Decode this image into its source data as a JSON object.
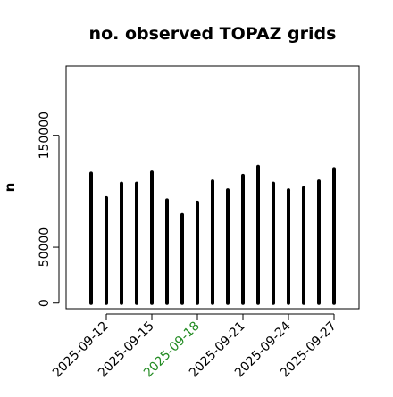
{
  "chart_data": {
    "type": "bar",
    "title": "no. observed TOPAZ grids",
    "xlabel": "",
    "ylabel": "n",
    "ylim": [
      -5000,
      212000
    ],
    "yticks": [
      0,
      50000,
      150000
    ],
    "ytick_labels": [
      "0",
      "50000",
      "150000"
    ],
    "x": [
      "2025-09-11",
      "2025-09-12",
      "2025-09-13",
      "2025-09-14",
      "2025-09-15",
      "2025-09-16",
      "2025-09-17",
      "2025-09-18",
      "2025-09-19",
      "2025-09-20",
      "2025-09-21",
      "2025-09-22",
      "2025-09-23",
      "2025-09-24",
      "2025-09-25",
      "2025-09-26",
      "2025-09-27"
    ],
    "values": [
      116000,
      94000,
      107000,
      107000,
      117000,
      92000,
      79000,
      90000,
      109000,
      101000,
      114000,
      122000,
      107000,
      101000,
      103000,
      109000,
      120000
    ],
    "xtick_labels": [
      {
        "label": "2025-09-12",
        "color": "#000000"
      },
      {
        "label": "2025-09-15",
        "color": "#000000"
      },
      {
        "label": "2025-09-18",
        "color": "#228B22"
      },
      {
        "label": "2025-09-21",
        "color": "#000000"
      },
      {
        "label": "2025-09-24",
        "color": "#000000"
      },
      {
        "label": "2025-09-27",
        "color": "#000000"
      }
    ],
    "bar_color": "#000000",
    "grid": false,
    "legend": "none"
  }
}
